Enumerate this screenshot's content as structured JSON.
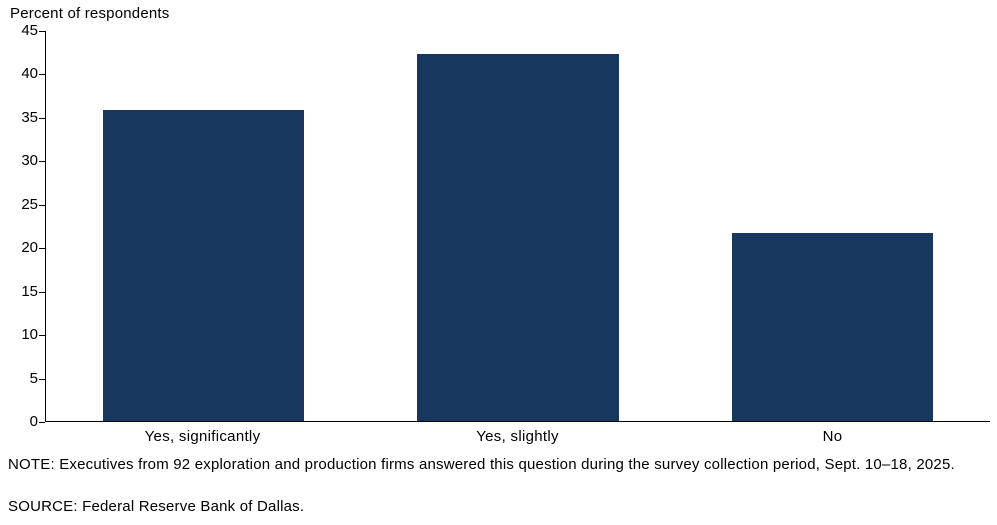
{
  "accent_color": "#17375E",
  "chart_data": {
    "type": "bar",
    "title": "Percent of respondents",
    "ylabel": "Percent of respondents",
    "xlabel": "",
    "categories": [
      "Yes, significantly",
      "Yes, slightly",
      "No"
    ],
    "values": [
      35.9,
      42.4,
      21.7
    ],
    "ylim": [
      0,
      45
    ],
    "ytick_step": 5,
    "grid": false,
    "legend": "none",
    "bar_color": "#17375E",
    "axis_color": "#000000"
  },
  "footer": {
    "note": "NOTE: Executives from 92 exploration and production firms answered this question during the survey collection period, Sept. 10–18, 2025.",
    "source": "SOURCE: Federal Reserve Bank of Dallas."
  }
}
